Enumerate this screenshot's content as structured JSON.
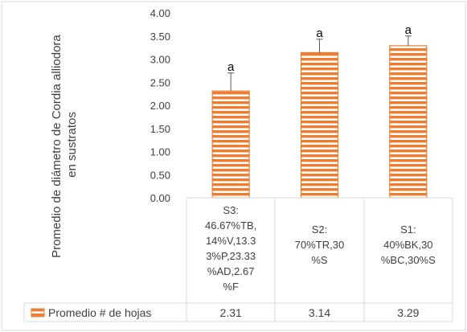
{
  "chart_data": {
    "type": "bar",
    "ylabel": "Promedio de diámetro de Cordia alliodora en sustratos",
    "ylim": [
      0,
      4
    ],
    "ytick_step": 0.5,
    "yticks": [
      "0.00",
      "0.50",
      "1.00",
      "1.50",
      "2.00",
      "2.50",
      "3.00",
      "3.50",
      "4.00"
    ],
    "grid": false,
    "legend": "data-table-left",
    "categories": [
      [
        "S3:",
        "46.67%TB,",
        "14%V,13.3",
        "3%P,23.33",
        "%AD,2.67",
        "%F"
      ],
      [
        "S2:",
        "70%TR,30",
        "%S"
      ],
      [
        "S1:",
        "40%BK,30",
        "%BC,30%S"
      ]
    ],
    "series": [
      {
        "name": "Promedio # de hojas",
        "values": [
          2.31,
          3.14,
          3.29
        ],
        "value_labels": [
          "2.31",
          "3.14",
          "3.29"
        ],
        "error_upper": [
          2.7,
          3.43,
          3.5
        ],
        "significance": [
          "a",
          "a",
          "a"
        ],
        "color": "#ED7D31",
        "pattern": "horizontal-stripes"
      }
    ]
  }
}
